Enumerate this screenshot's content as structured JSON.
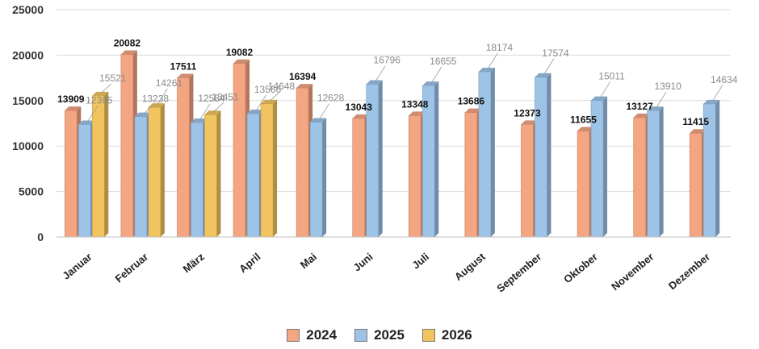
{
  "chart_data": {
    "type": "bar",
    "categories": [
      "Januar",
      "Februar",
      "März",
      "April",
      "Mai",
      "Juni",
      "Juli",
      "August",
      "September",
      "Oktober",
      "November",
      "Dezember"
    ],
    "series": [
      {
        "name": "2024",
        "color": "#f4a582",
        "values": [
          13909,
          20082,
          17511,
          19082,
          16394,
          13043,
          13348,
          13686,
          12373,
          11655,
          13127,
          11415
        ]
      },
      {
        "name": "2025",
        "color": "#9dc3e6",
        "values": [
          12365,
          13238,
          12584,
          13566,
          12628,
          16796,
          16655,
          18174,
          17574,
          15011,
          13910,
          14634
        ]
      },
      {
        "name": "2026",
        "color": "#f2c45f",
        "values": [
          15521,
          14261,
          13451,
          14648,
          null,
          null,
          null,
          null,
          null,
          null,
          null,
          null
        ]
      }
    ],
    "yticks": [
      "0",
      "5000",
      "10000",
      "15000",
      "20000",
      "25000"
    ],
    "ylim": [
      0,
      25000
    ],
    "grid": true,
    "legend_position": "bottom",
    "data_labels": [
      {
        "cat": 0,
        "text": "13909",
        "style": "dark"
      },
      {
        "cat": 0,
        "text": "12365",
        "style": "grey"
      },
      {
        "cat": 0,
        "text": "15521",
        "style": "grey"
      },
      {
        "cat": 1,
        "text": "20082",
        "style": "dark"
      },
      {
        "cat": 1,
        "text": "14261",
        "style": "grey"
      },
      {
        "cat": 1,
        "text": "13238",
        "style": "grey"
      },
      {
        "cat": 2,
        "text": "17511",
        "style": "dark"
      },
      {
        "cat": 2,
        "text": "12584",
        "style": "grey"
      },
      {
        "cat": 2,
        "text": "13451",
        "style": "grey"
      },
      {
        "cat": 3,
        "text": "19082",
        "style": "dark"
      },
      {
        "cat": 3,
        "text": "13566",
        "style": "grey"
      },
      {
        "cat": 3,
        "text": "14648",
        "style": "grey"
      },
      {
        "cat": 4,
        "text": "16394",
        "style": "dark"
      },
      {
        "cat": 4,
        "text": "12628",
        "style": "grey"
      },
      {
        "cat": 5,
        "text": "13043",
        "style": "dark"
      },
      {
        "cat": 5,
        "text": "16796",
        "style": "grey"
      },
      {
        "cat": 6,
        "text": "13348",
        "style": "dark"
      },
      {
        "cat": 6,
        "text": "16655",
        "style": "grey"
      },
      {
        "cat": 7,
        "text": "13686",
        "style": "dark"
      },
      {
        "cat": 7,
        "text": "18174",
        "style": "grey"
      },
      {
        "cat": 8,
        "text": "12373",
        "style": "dark"
      },
      {
        "cat": 8,
        "text": "17574",
        "style": "grey"
      },
      {
        "cat": 9,
        "text": "11655",
        "style": "dark"
      },
      {
        "cat": 9,
        "text": "15011",
        "style": "grey"
      },
      {
        "cat": 10,
        "text": "13127",
        "style": "dark"
      },
      {
        "cat": 10,
        "text": "13910",
        "style": "grey"
      },
      {
        "cat": 11,
        "text": "11415",
        "style": "dark"
      },
      {
        "cat": 11,
        "text": "14634",
        "style": "grey"
      }
    ]
  }
}
